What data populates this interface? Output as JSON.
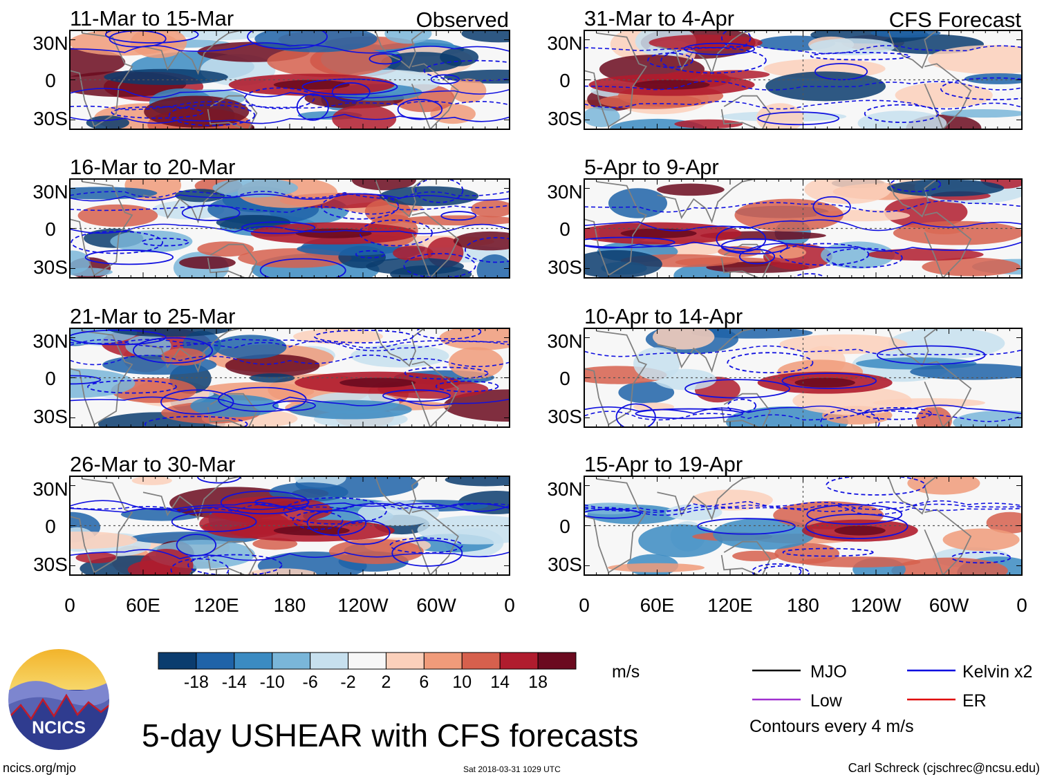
{
  "chart_data": {
    "type": "heatmap",
    "title": "5-day USHEAR with CFS forecasts",
    "units": "m/s",
    "lat_ticks": [
      "30N",
      "0",
      "30S"
    ],
    "lon_ticks": [
      "0",
      "60E",
      "120E",
      "180",
      "120W",
      "60W",
      "0"
    ],
    "observed_label": "Observed",
    "forecast_label": "CFS Forecast",
    "observed_panels": [
      {
        "period": "11-Mar to 15-Mar",
        "source": "Observed"
      },
      {
        "period": "16-Mar to 20-Mar",
        "source": "Observed"
      },
      {
        "period": "21-Mar to 25-Mar",
        "source": "Observed"
      },
      {
        "period": "26-Mar to 30-Mar",
        "source": "Observed"
      }
    ],
    "forecast_panels": [
      {
        "period": "31-Mar to 4-Apr",
        "source": "CFS Forecast"
      },
      {
        "period": "5-Apr to 9-Apr",
        "source": "CFS Forecast"
      },
      {
        "period": "10-Apr to 14-Apr",
        "source": "CFS Forecast"
      },
      {
        "period": "15-Apr to 19-Apr",
        "source": "CFS Forecast"
      }
    ],
    "colorbar": {
      "labels": [
        "-18",
        "-14",
        "-10",
        "-6",
        "-2",
        "2",
        "6",
        "10",
        "14",
        "18"
      ],
      "colors": [
        "#0b3c6e",
        "#1f63a8",
        "#3b8bc2",
        "#7ab6d9",
        "#c7e0ee",
        "#f7f7f7",
        "#fbd0bb",
        "#f09b7a",
        "#d6604d",
        "#b01c2e",
        "#6b0a1f"
      ]
    },
    "legend": [
      {
        "name": "MJO",
        "color": "#000000"
      },
      {
        "name": "Kelvin x2",
        "color": "#0000e0"
      },
      {
        "name": "Low",
        "color": "#a030d0"
      },
      {
        "name": "ER",
        "color": "#e00000"
      }
    ],
    "contour_note": "Contours every 4 m/s"
  },
  "logo": {
    "text": "NCICS"
  },
  "footer": {
    "url": "ncics.org/mjo",
    "timestamp": "Sat 2018-03-31 1029 UTC",
    "author": "Carl Schreck (cjschrec@ncsu.edu)"
  }
}
